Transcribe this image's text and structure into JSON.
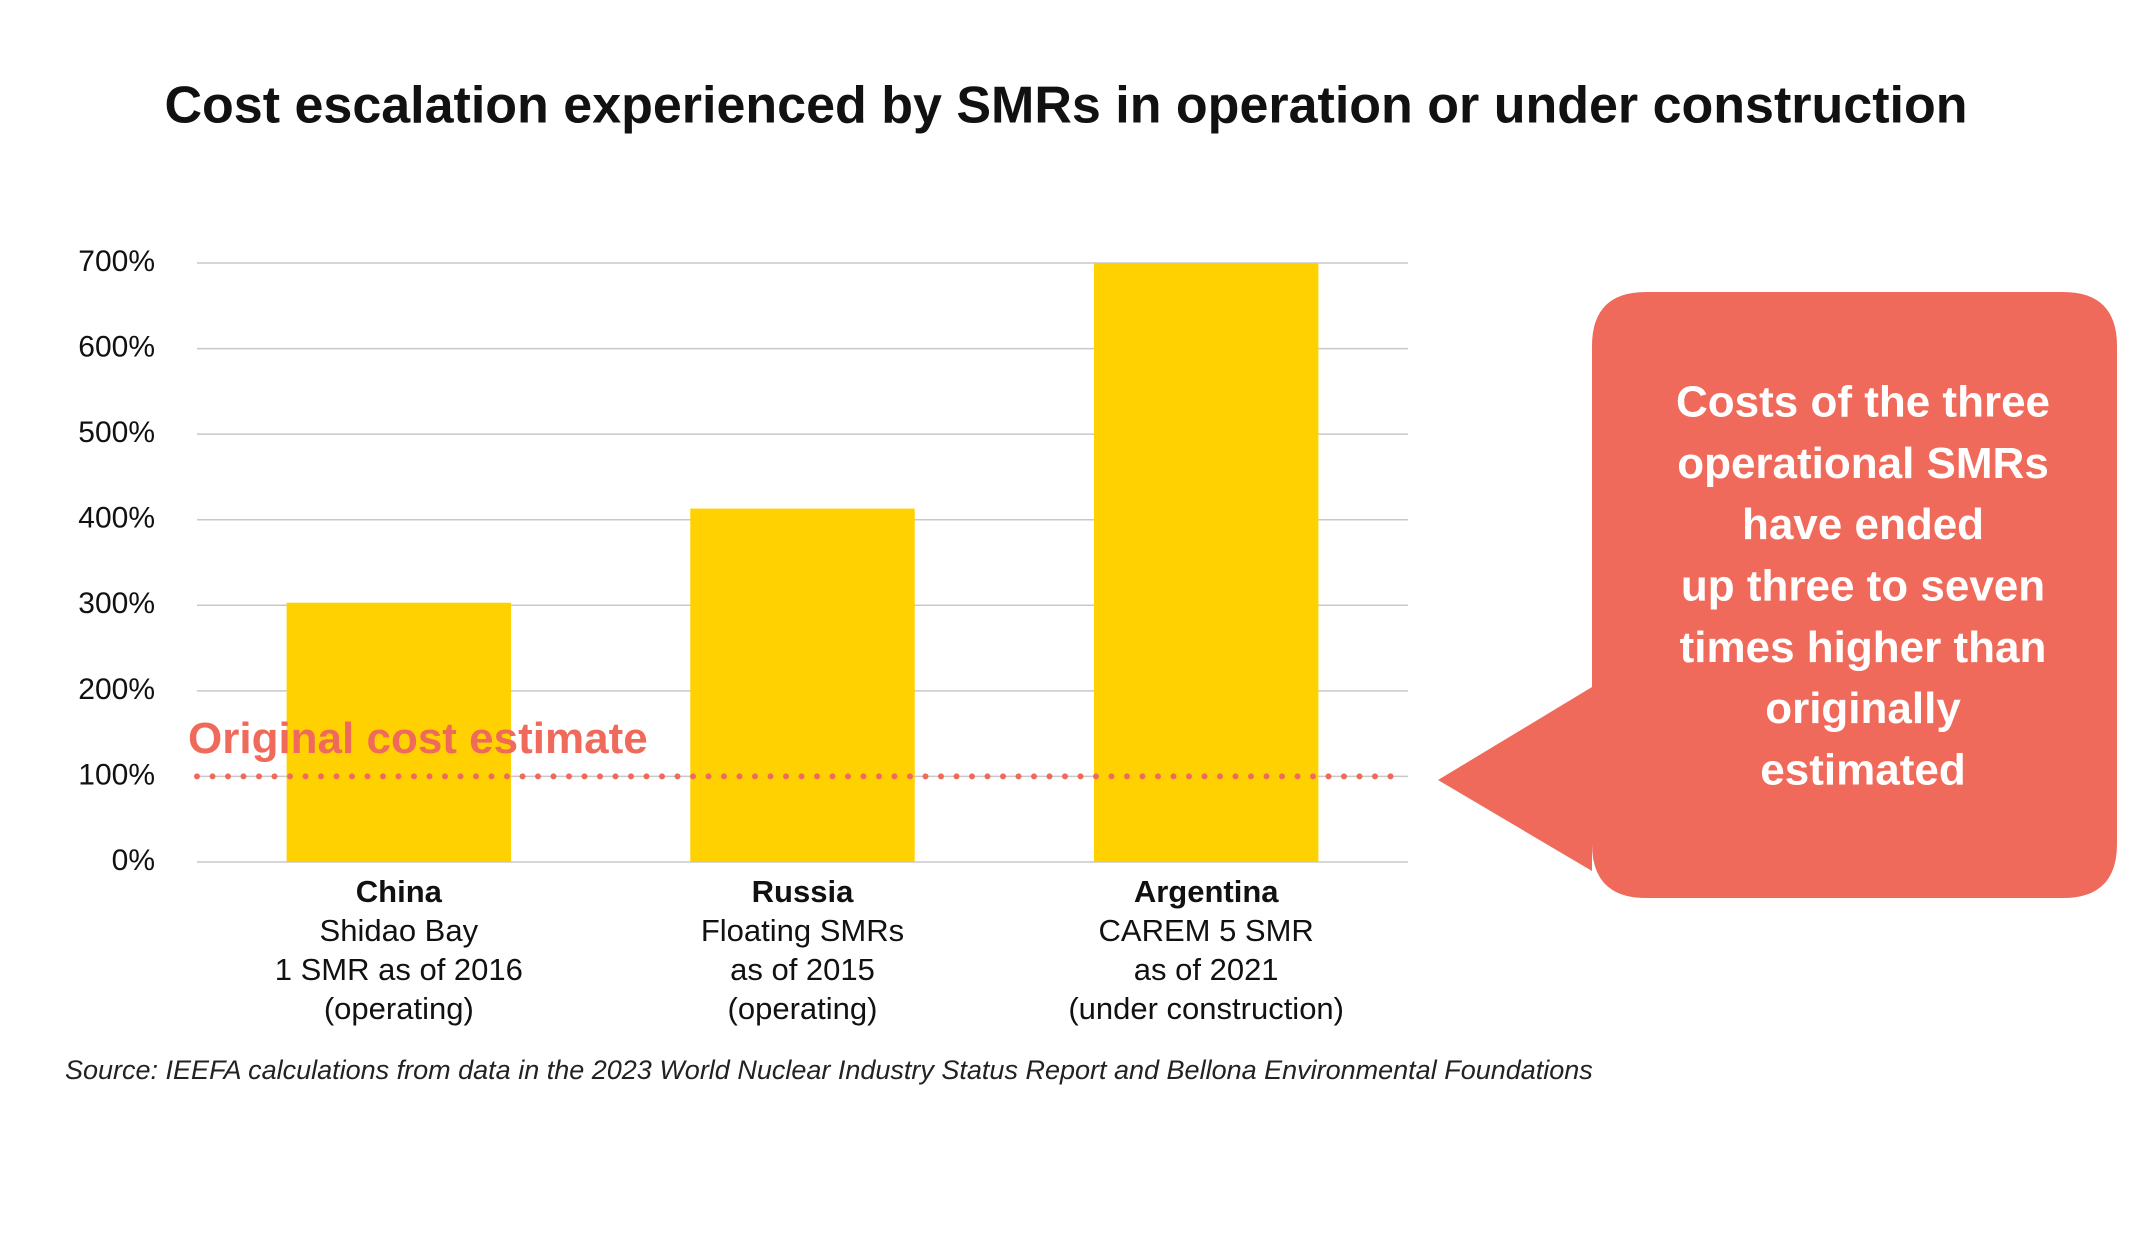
{
  "chart_data": {
    "type": "bar",
    "title": "Cost escalation experienced by SMRs in operation or under construction",
    "categories": [
      "China",
      "Russia",
      "Argentina"
    ],
    "category_details": [
      [
        "Shidao Bay",
        "1 SMR as of 2016",
        "(operating)"
      ],
      [
        "Floating SMRs",
        "as of 2015",
        "(operating)"
      ],
      [
        "CAREM 5 SMR",
        "as of 2021",
        "(under construction)"
      ]
    ],
    "values": [
      303,
      413,
      700
    ],
    "color": "#ffd100",
    "ylim": [
      0,
      700
    ],
    "yticks": [
      {
        "value": 0,
        "label": "0%"
      },
      {
        "value": 100,
        "label": "100%"
      },
      {
        "value": 200,
        "label": "200%"
      },
      {
        "value": 300,
        "label": "300%"
      },
      {
        "value": 400,
        "label": "400%"
      },
      {
        "value": 500,
        "label": "500%"
      },
      {
        "value": 600,
        "label": "600%"
      },
      {
        "value": 700,
        "label": "700%"
      }
    ],
    "grid": true,
    "reference_line": {
      "value": 100,
      "label": "Original cost estimate",
      "color": "#f06a5b"
    },
    "callout": {
      "lines": [
        "Costs of the three",
        "operational SMRs",
        "have ended",
        "up three to seven",
        "times higher than",
        "originally",
        "estimated"
      ],
      "color": "#f06a5b"
    },
    "source": "Source: IEEFA calculations from data in the 2023 World Nuclear Industry Status Report and Bellona Environmental Foundations"
  }
}
